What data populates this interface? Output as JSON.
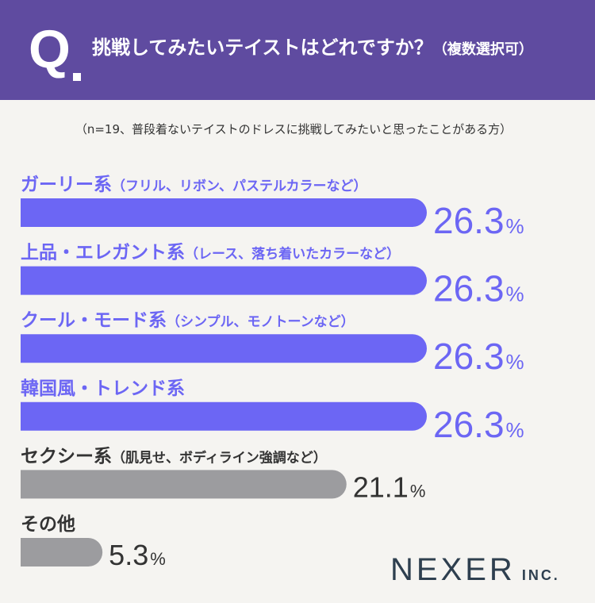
{
  "header": {
    "q_label": "Q",
    "question": "挑戦してみたいテイストはどれですか？",
    "note": "（複数選択可）"
  },
  "sample_note": "（n=19、普段着ないテイストのドレスに挑戦してみたいと思ったことがある方）",
  "colors": {
    "header_bg": "#5f4ba0",
    "highlight": "#6c66f4",
    "other": "#9c9c9f"
  },
  "chart_data": {
    "type": "bar",
    "orientation": "horizontal",
    "unit": "%",
    "xlim": [
      0,
      26.3
    ],
    "categories": [
      {
        "label": "ガーリー系",
        "note": "（フリル、リボン、パステルカラーなど）",
        "value": 26.3,
        "highlight": true
      },
      {
        "label": "上品・エレガント系",
        "note": "（レース、落ち着いたカラーなど）",
        "value": 26.3,
        "highlight": true
      },
      {
        "label": "クール・モード系",
        "note": "（シンプル、モノトーンなど）",
        "value": 26.3,
        "highlight": true
      },
      {
        "label": "韓国風・トレンド系",
        "note": "",
        "value": 26.3,
        "highlight": true
      },
      {
        "label": "セクシー系",
        "note": "（肌見せ、ボディライン強調など）",
        "value": 21.1,
        "highlight": false
      },
      {
        "label": "その他",
        "note": "",
        "value": 5.3,
        "highlight": false
      }
    ]
  },
  "logo": {
    "main": "NEXER",
    "suffix": "INC."
  }
}
